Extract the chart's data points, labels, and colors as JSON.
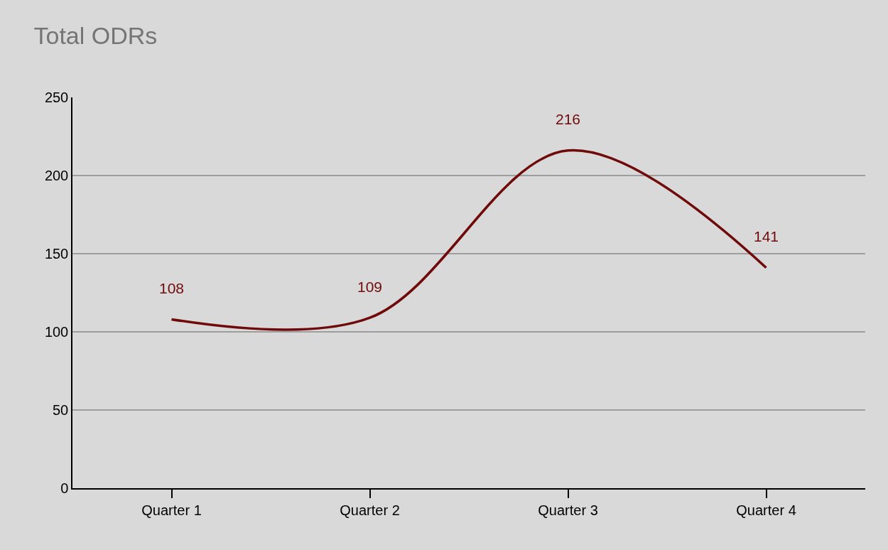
{
  "chart_data": {
    "type": "line",
    "title": "Total ODRs",
    "categories": [
      "Quarter 1",
      "Quarter 2",
      "Quarter 3",
      "Quarter 4"
    ],
    "series": [
      {
        "color": "#700a0a",
        "values": [
          108,
          109,
          216,
          141
        ]
      }
    ],
    "ylim": [
      0,
      250
    ],
    "yticks": [
      0,
      50,
      100,
      150,
      200,
      250
    ],
    "grid": "y",
    "data_labels": true,
    "marker": "none",
    "line_style": "solid"
  }
}
